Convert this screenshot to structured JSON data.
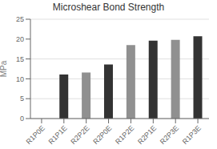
{
  "chart_data": {
    "type": "bar",
    "title": "Microshear Bond Strength",
    "ylabel": "MPa",
    "categories": [
      "R1P0E",
      "R1P1E",
      "R2P2E",
      "R2P0E",
      "R1P2E",
      "R2P1E",
      "R2P3E",
      "R1P3E"
    ],
    "values": [
      0.0,
      11.1,
      11.6,
      13.6,
      18.5,
      19.6,
      19.8,
      20.7
    ],
    "colors": [
      "#909090",
      "#333333",
      "#909090",
      "#333333",
      "#909090",
      "#333333",
      "#909090",
      "#333333"
    ],
    "ylim": [
      0,
      25
    ],
    "yticks": [
      0,
      5,
      10,
      15,
      20,
      25
    ],
    "grid": true
  }
}
